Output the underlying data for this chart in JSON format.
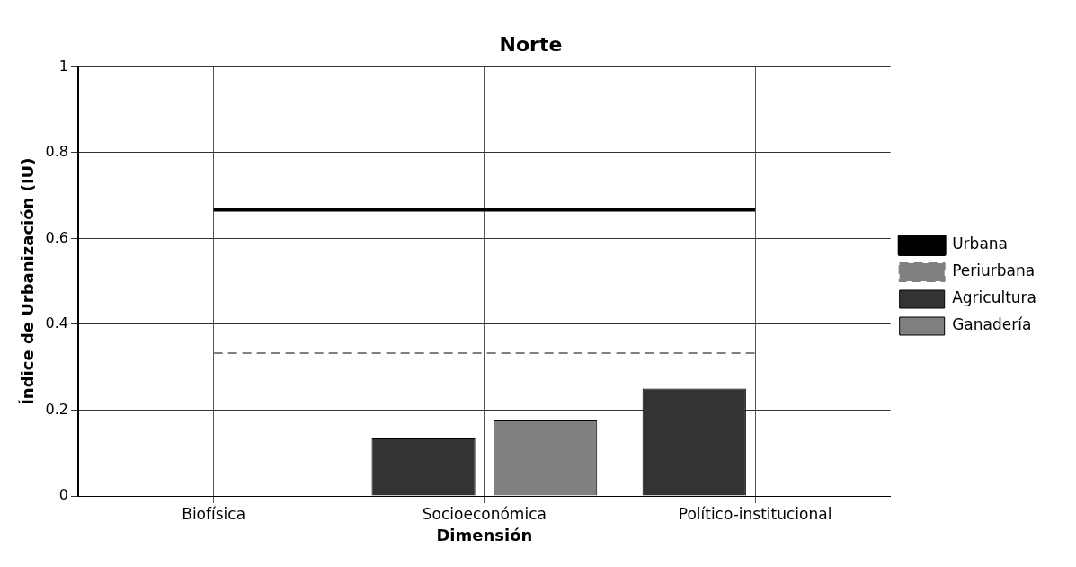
{
  "chart_data": {
    "type": "bar",
    "title": "Norte",
    "xlabel": "Dimensión",
    "ylabel": "Índice de Urbanización (IU)",
    "categories": [
      "Biofísica",
      "Socioeconómica",
      "Político-institucional"
    ],
    "series": [
      {
        "name": "Urbana",
        "type": "line",
        "line_style": "solid",
        "color": "#000000",
        "values": [
          0.667,
          0.667,
          0.667
        ]
      },
      {
        "name": "Periurbana",
        "type": "line",
        "line_style": "dashed",
        "color": "#808080",
        "values": [
          0.333,
          0.333,
          0.333
        ]
      },
      {
        "name": "Agricultura",
        "color": "#333333",
        "values": [
          0,
          0.136,
          0.25
        ]
      },
      {
        "name": "Ganadería",
        "color": "#808080",
        "values": [
          0,
          0.178,
          0
        ]
      }
    ],
    "ylim": [
      0,
      1
    ],
    "yticks": [
      0,
      0.2,
      0.4,
      0.6,
      0.8,
      1
    ],
    "grid": true,
    "legend": "right",
    "marker": "none"
  }
}
